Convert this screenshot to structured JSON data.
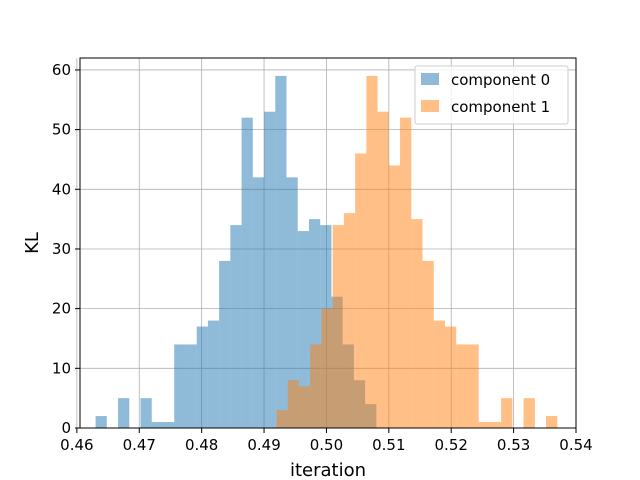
{
  "chart_data": {
    "type": "bar",
    "subtype": "overlapping-histogram",
    "xlabel": "iteration",
    "ylabel": "KL",
    "xlim": [
      0.4605,
      0.54
    ],
    "ylim": [
      0,
      62
    ],
    "xticks": [
      0.46,
      0.47,
      0.48,
      0.49,
      0.5,
      0.51,
      0.52,
      0.53,
      0.54
    ],
    "xtick_labels": [
      "0.46",
      "0.47",
      "0.48",
      "0.49",
      "0.50",
      "0.51",
      "0.52",
      "0.53",
      "0.54"
    ],
    "yticks": [
      0,
      10,
      20,
      30,
      40,
      50,
      60
    ],
    "ytick_labels": [
      "0",
      "10",
      "20",
      "30",
      "40",
      "50",
      "60"
    ],
    "grid": true,
    "legend_position": "top-right",
    "series": [
      {
        "name": "component 0",
        "color": "#1f77b4",
        "alpha": 0.5,
        "bins": [
          [
            0.463,
            0.4648,
            2
          ],
          [
            0.4648,
            0.4666,
            0
          ],
          [
            0.4666,
            0.4684,
            5
          ],
          [
            0.4684,
            0.4702,
            0
          ],
          [
            0.4702,
            0.472,
            5
          ],
          [
            0.472,
            0.4738,
            1
          ],
          [
            0.4738,
            0.4756,
            1
          ],
          [
            0.4756,
            0.4774,
            14
          ],
          [
            0.4774,
            0.4792,
            14
          ],
          [
            0.4792,
            0.481,
            17
          ],
          [
            0.481,
            0.4828,
            18
          ],
          [
            0.4828,
            0.4846,
            28
          ],
          [
            0.4846,
            0.4864,
            34
          ],
          [
            0.4864,
            0.4882,
            52
          ],
          [
            0.4882,
            0.49,
            42
          ],
          [
            0.49,
            0.4918,
            53
          ],
          [
            0.4918,
            0.4936,
            59
          ],
          [
            0.4936,
            0.4954,
            42
          ],
          [
            0.4954,
            0.4972,
            33
          ],
          [
            0.4972,
            0.499,
            35
          ],
          [
            0.499,
            0.5008,
            34
          ],
          [
            0.5008,
            0.5026,
            22
          ],
          [
            0.5026,
            0.5044,
            14
          ],
          [
            0.5044,
            0.5062,
            8
          ],
          [
            0.5062,
            0.508,
            4
          ]
        ]
      },
      {
        "name": "component 1",
        "color": "#ff7f0e",
        "alpha": 0.5,
        "bins": [
          [
            0.492,
            0.4938,
            3
          ],
          [
            0.4938,
            0.4956,
            8
          ],
          [
            0.4956,
            0.4974,
            7
          ],
          [
            0.4974,
            0.4992,
            14
          ],
          [
            0.4992,
            0.501,
            20
          ],
          [
            0.501,
            0.5028,
            34
          ],
          [
            0.5028,
            0.5046,
            36
          ],
          [
            0.5046,
            0.5064,
            46
          ],
          [
            0.5064,
            0.5082,
            59
          ],
          [
            0.5082,
            0.51,
            53
          ],
          [
            0.51,
            0.5118,
            44
          ],
          [
            0.5118,
            0.5136,
            52
          ],
          [
            0.5136,
            0.5154,
            35
          ],
          [
            0.5154,
            0.5172,
            28
          ],
          [
            0.5172,
            0.519,
            18
          ],
          [
            0.519,
            0.5208,
            17
          ],
          [
            0.5208,
            0.5226,
            14
          ],
          [
            0.5226,
            0.5244,
            14
          ],
          [
            0.5244,
            0.5262,
            1
          ],
          [
            0.5262,
            0.528,
            1
          ],
          [
            0.528,
            0.5298,
            5
          ],
          [
            0.5298,
            0.5316,
            0
          ],
          [
            0.5316,
            0.5334,
            5
          ],
          [
            0.5334,
            0.5352,
            0
          ],
          [
            0.5352,
            0.537,
            2
          ]
        ]
      }
    ]
  }
}
